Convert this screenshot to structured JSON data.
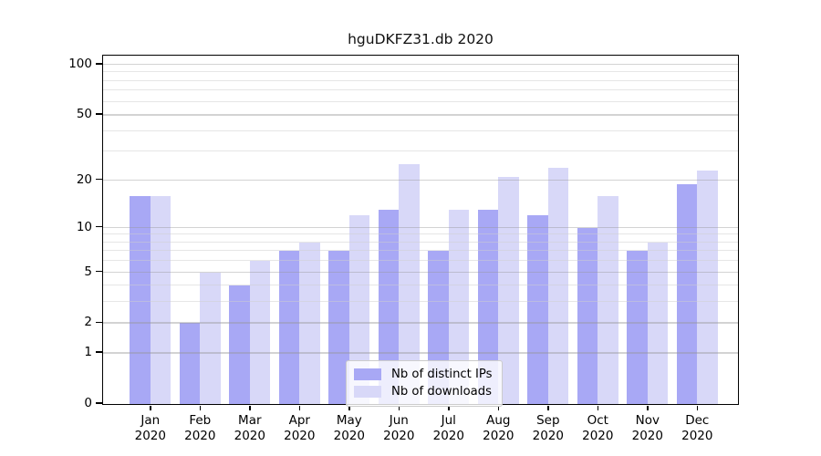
{
  "chart_data": {
    "type": "bar",
    "title": "hguDKFZ31.db 2020",
    "categories": [
      "Jan",
      "Feb",
      "Mar",
      "Apr",
      "May",
      "Jun",
      "Jul",
      "Aug",
      "Sep",
      "Oct",
      "Nov",
      "Dec"
    ],
    "x_year": "2020",
    "series": [
      {
        "name": "Nb of distinct IPs",
        "color": "#a8a8f5",
        "values": [
          16,
          2,
          4,
          7,
          7,
          13,
          7,
          13,
          12,
          10,
          7,
          19
        ]
      },
      {
        "name": "Nb of downloads",
        "color": "#d8d8f8",
        "values": [
          16,
          5,
          6,
          8,
          12,
          25,
          13,
          21,
          24,
          16,
          8,
          23
        ]
      }
    ],
    "y_ticks": [
      0,
      1,
      2,
      5,
      10,
      20,
      50,
      100
    ],
    "y_minor_gridlines": [
      3,
      4,
      6,
      7,
      8,
      9,
      30,
      40,
      60,
      70,
      80,
      90
    ],
    "scale": "log1p",
    "ylim": [
      0,
      112
    ],
    "grid": true,
    "legend_position": "inside lower-center",
    "frame_color": "#000000",
    "background_color": "#ffffff"
  }
}
